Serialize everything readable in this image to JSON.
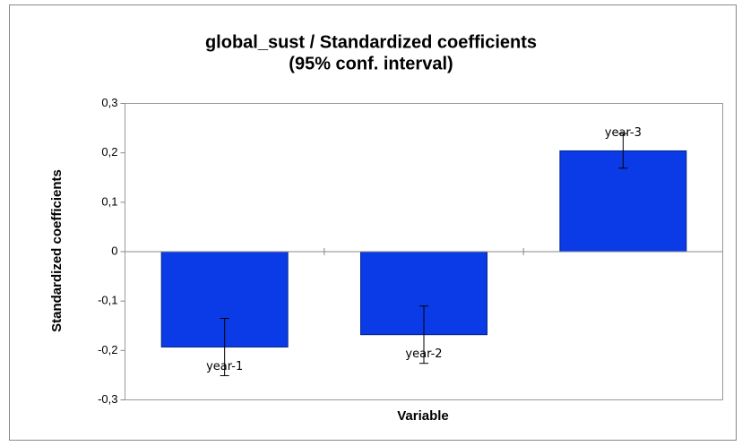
{
  "chart_data": {
    "type": "bar",
    "title": "global_sust / Standardized coefficients",
    "subtitle": "(95% conf. interval)",
    "x_label": "Variable",
    "y_label": "Standardized coefficients",
    "categories": [
      "year-1",
      "year-2",
      "year-3"
    ],
    "values": [
      -0.193,
      -0.168,
      0.204
    ],
    "errors": [
      0.058,
      0.058,
      0.035
    ],
    "color": "#0a3be6",
    "ylim": [
      -0.3,
      0.3
    ],
    "yticks": [
      {
        "value": -0.3,
        "label": "-0,3"
      },
      {
        "value": -0.2,
        "label": "-0,2"
      },
      {
        "value": -0.1,
        "label": "-0,1"
      },
      0,
      {
        "value": 0.1,
        "label": "0,1"
      },
      {
        "value": 0.2,
        "label": "0,2"
      },
      {
        "value": 0.3,
        "label": "0,3"
      }
    ],
    "grid": false
  }
}
